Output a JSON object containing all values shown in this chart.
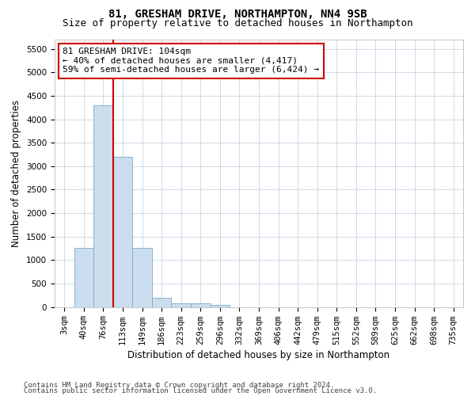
{
  "title_line1": "81, GRESHAM DRIVE, NORTHAMPTON, NN4 9SB",
  "title_line2": "Size of property relative to detached houses in Northampton",
  "xlabel": "Distribution of detached houses by size in Northampton",
  "ylabel": "Number of detached properties",
  "bar_color": "#ccdded",
  "bar_edge_color": "#7baac8",
  "categories": [
    "3sqm",
    "40sqm",
    "76sqm",
    "113sqm",
    "149sqm",
    "186sqm",
    "223sqm",
    "259sqm",
    "296sqm",
    "332sqm",
    "369sqm",
    "406sqm",
    "442sqm",
    "479sqm",
    "515sqm",
    "552sqm",
    "589sqm",
    "625sqm",
    "662sqm",
    "698sqm",
    "735sqm"
  ],
  "values": [
    0,
    1250,
    4300,
    3200,
    1250,
    200,
    75,
    75,
    50,
    0,
    0,
    0,
    0,
    0,
    0,
    0,
    0,
    0,
    0,
    0,
    0
  ],
  "ylim": [
    0,
    5700
  ],
  "yticks": [
    0,
    500,
    1000,
    1500,
    2000,
    2500,
    3000,
    3500,
    4000,
    4500,
    5000,
    5500
  ],
  "vline_color": "#cc0000",
  "annotation_text": "81 GRESHAM DRIVE: 104sqm\n← 40% of detached houses are smaller (4,417)\n59% of semi-detached houses are larger (6,424) →",
  "annotation_box_color": "#ffffff",
  "annotation_border_color": "#cc0000",
  "footer_line1": "Contains HM Land Registry data © Crown copyright and database right 2024.",
  "footer_line2": "Contains public sector information licensed under the Open Government Licence v3.0.",
  "background_color": "#ffffff",
  "grid_color": "#c8d4e4",
  "title_fontsize": 10,
  "subtitle_fontsize": 9,
  "axis_label_fontsize": 8.5,
  "tick_fontsize": 7.5,
  "footer_fontsize": 6.5
}
